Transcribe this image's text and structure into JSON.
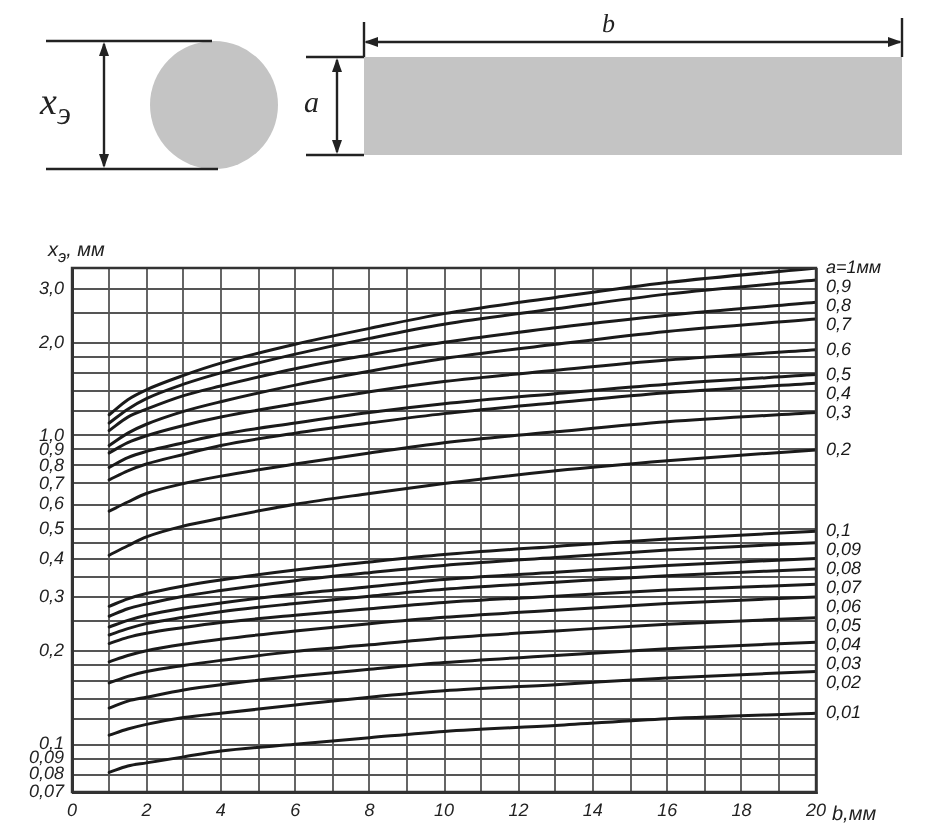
{
  "chart_data": {
    "type": "line",
    "xlabel": "b,мм",
    "ylabel": "x$_{э}$, мм",
    "annotations": [
      "x$_{э}$",
      "a",
      "b"
    ],
    "x": [
      1,
      1.5,
      2,
      3,
      4,
      6,
      8,
      10,
      13,
      16,
      20
    ],
    "xlim": [
      0,
      20
    ],
    "xticks": [
      0,
      {
        "value": 1,
        "label": null
      },
      2,
      {
        "value": 3,
        "label": null
      },
      4,
      {
        "value": 5,
        "label": null
      },
      6,
      {
        "value": 7,
        "label": null
      },
      8,
      {
        "value": 9,
        "label": null
      },
      10,
      {
        "value": 11,
        "label": null
      },
      12,
      {
        "value": 13,
        "label": null
      },
      14,
      {
        "value": 15,
        "label": null
      },
      16,
      {
        "value": 17,
        "label": null
      },
      18,
      {
        "value": 19,
        "label": null
      },
      20
    ],
    "ylim": [
      0.07,
      3.5
    ],
    "yticks": [
      {
        "value": 0.07,
        "label": "0,07"
      },
      {
        "value": 0.08,
        "label": "0,08"
      },
      {
        "value": 0.09,
        "label": "0,09"
      },
      {
        "value": 0.1,
        "label": "0,1"
      },
      {
        "value": 0.12,
        "label": null
      },
      {
        "value": 0.14,
        "label": null
      },
      {
        "value": 0.16,
        "label": null
      },
      {
        "value": 0.18,
        "label": null
      },
      {
        "value": 0.2,
        "label": "0,2"
      },
      {
        "value": 0.25,
        "label": null
      },
      {
        "value": 0.3,
        "label": "0,3"
      },
      {
        "value": 0.35,
        "label": null
      },
      {
        "value": 0.4,
        "label": "0,4"
      },
      {
        "value": 0.45,
        "label": null
      },
      {
        "value": 0.5,
        "label": "0,5"
      },
      {
        "value": 0.6,
        "label": "0,6"
      },
      {
        "value": 0.7,
        "label": "0,7"
      },
      {
        "value": 0.8,
        "label": "0,8"
      },
      {
        "value": 0.9,
        "label": "0,9"
      },
      {
        "value": 1,
        "label": "1,0"
      },
      {
        "value": 1.2,
        "label": null
      },
      {
        "value": 1.4,
        "label": null
      },
      {
        "value": 1.6,
        "label": null
      },
      {
        "value": 1.8,
        "label": null
      },
      {
        "value": 2,
        "label": "2,0"
      },
      {
        "value": 2.5,
        "label": null
      },
      {
        "value": 3,
        "label": "3,0"
      }
    ],
    "log": "y",
    "grid": true,
    "marker": "none",
    "line_style": "solid",
    "series": [
      {
        "name": "a=1мм",
        "color": "#1a1a1a",
        "values": [
          1.17,
          1.31,
          1.41,
          1.57,
          1.72,
          1.98,
          2.23,
          2.49,
          2.81,
          3.14,
          3.5
        ]
      },
      {
        "name": "0,9",
        "color": "#1a1a1a",
        "values": [
          1.1,
          1.22,
          1.32,
          1.47,
          1.6,
          1.84,
          2.07,
          2.3,
          2.58,
          2.88,
          3.2
        ]
      },
      {
        "name": "0,8",
        "color": "#1a1a1a",
        "values": [
          1.04,
          1.15,
          1.22,
          1.35,
          1.45,
          1.65,
          1.83,
          2.01,
          2.24,
          2.46,
          2.71
        ]
      },
      {
        "name": "0,7",
        "color": "#1a1a1a",
        "values": [
          0.93,
          1.02,
          1.09,
          1.2,
          1.29,
          1.46,
          1.62,
          1.78,
          1.98,
          2.18,
          2.39
        ]
      },
      {
        "name": "0,6",
        "color": "#1a1a1a",
        "values": [
          0.88,
          0.95,
          1.0,
          1.08,
          1.15,
          1.27,
          1.39,
          1.5,
          1.63,
          1.76,
          1.9
        ]
      },
      {
        "name": "0,5",
        "color": "#1a1a1a",
        "values": [
          0.79,
          0.85,
          0.89,
          0.95,
          1.01,
          1.1,
          1.19,
          1.27,
          1.37,
          1.47,
          1.58
        ]
      },
      {
        "name": "0,4",
        "color": "#1a1a1a",
        "values": [
          0.72,
          0.77,
          0.81,
          0.87,
          0.93,
          1.02,
          1.1,
          1.18,
          1.28,
          1.38,
          1.48
        ]
      },
      {
        "name": "0,3",
        "color": "#1a1a1a",
        "values": [
          0.57,
          0.61,
          0.65,
          0.7,
          0.74,
          0.81,
          0.88,
          0.95,
          1.03,
          1.11,
          1.19
        ]
      },
      {
        "name": "0,2",
        "color": "#1a1a1a",
        "values": [
          0.41,
          0.44,
          0.47,
          0.51,
          0.54,
          0.6,
          0.65,
          0.7,
          0.77,
          0.83,
          0.9
        ]
      },
      {
        "name": "0,1",
        "color": "#1a1a1a",
        "values": [
          0.28,
          0.296,
          0.308,
          0.326,
          0.341,
          0.367,
          0.39,
          0.412,
          0.438,
          0.463,
          0.49
        ]
      },
      {
        "name": "0,09",
        "color": "#1a1a1a",
        "values": [
          0.26,
          0.275,
          0.285,
          0.302,
          0.315,
          0.339,
          0.36,
          0.38,
          0.403,
          0.426,
          0.45
        ]
      },
      {
        "name": "0,08",
        "color": "#1a1a1a",
        "values": [
          0.24,
          0.252,
          0.262,
          0.276,
          0.287,
          0.307,
          0.324,
          0.342,
          0.361,
          0.38,
          0.4
        ]
      },
      {
        "name": "0,07",
        "color": "#1a1a1a",
        "values": [
          0.226,
          0.237,
          0.246,
          0.258,
          0.269,
          0.286,
          0.302,
          0.318,
          0.335,
          0.352,
          0.37
        ]
      },
      {
        "name": "0,06",
        "color": "#1a1a1a",
        "values": [
          0.212,
          0.222,
          0.229,
          0.239,
          0.248,
          0.262,
          0.275,
          0.288,
          0.302,
          0.316,
          0.33
        ]
      },
      {
        "name": "0,05",
        "color": "#1a1a1a",
        "values": [
          0.185,
          0.194,
          0.201,
          0.211,
          0.219,
          0.233,
          0.246,
          0.258,
          0.272,
          0.286,
          0.3
        ]
      },
      {
        "name": "0,04",
        "color": "#1a1a1a",
        "values": [
          0.158,
          0.166,
          0.172,
          0.18,
          0.187,
          0.2,
          0.21,
          0.221,
          0.233,
          0.245,
          0.257
        ]
      },
      {
        "name": "0,03",
        "color": "#1a1a1a",
        "values": [
          0.131,
          0.138,
          0.142,
          0.15,
          0.156,
          0.166,
          0.175,
          0.184,
          0.194,
          0.204,
          0.214
        ]
      },
      {
        "name": "0,02",
        "color": "#1a1a1a",
        "values": [
          0.107,
          0.112,
          0.116,
          0.122,
          0.126,
          0.134,
          0.142,
          0.149,
          0.156,
          0.164,
          0.172
        ]
      },
      {
        "name": "0,01",
        "color": "#1a1a1a",
        "values": [
          0.081,
          0.085,
          0.087,
          0.091,
          0.095,
          0.1,
          0.105,
          0.11,
          0.115,
          0.121,
          0.126
        ]
      }
    ]
  }
}
